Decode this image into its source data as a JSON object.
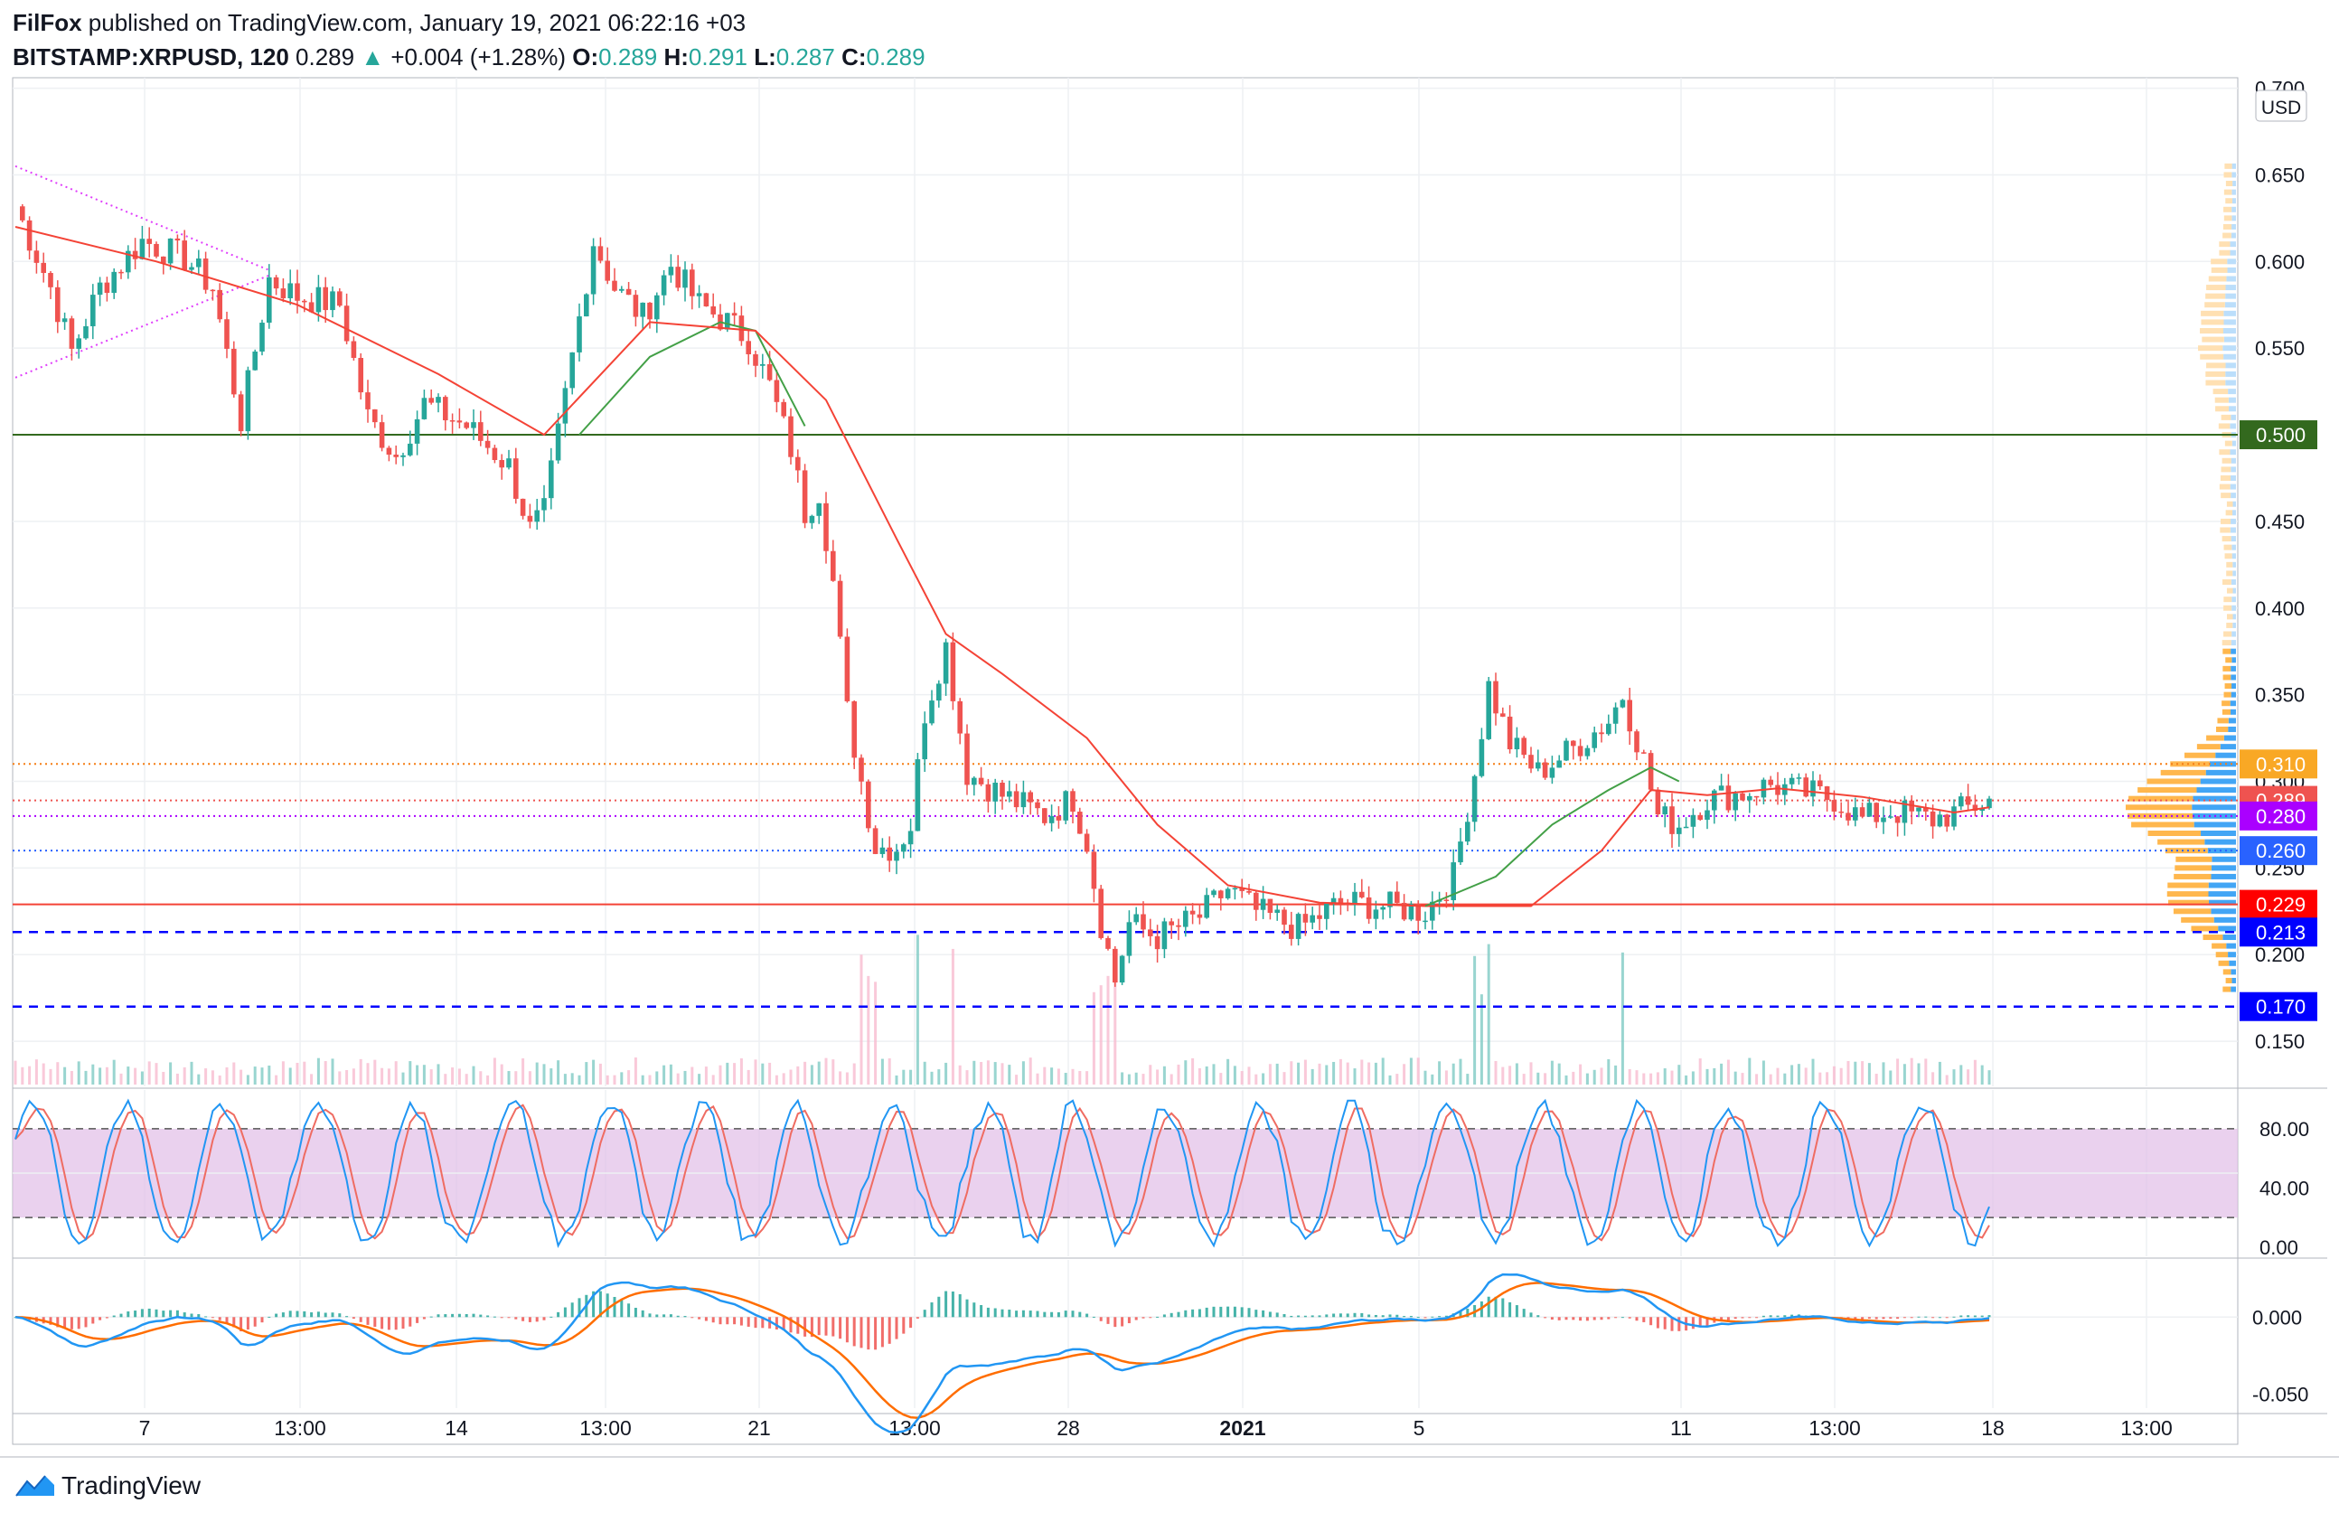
{
  "header": {
    "author": "FilFox",
    "published_text": "published on TradingView.com, January 19, 2021 06:22:16 +03",
    "symbol": "BITSTAMP:XRPUSD, 120",
    "last": "0.289",
    "change_arrow": "▲",
    "change": "+0.004 (+1.28%)",
    "o_label": "O:",
    "o_value": "0.289",
    "h_label": "H:",
    "h_value": "0.291",
    "l_label": "L:",
    "l_value": "0.287",
    "c_label": "C:",
    "c_value": "0.289"
  },
  "footer": {
    "brand": "TradingView"
  },
  "colors": {
    "up": "#26a69a",
    "down": "#ef5350",
    "ma_fast": "#43a047",
    "ma_slow": "#f44336",
    "level_green": "#33691e",
    "level_red": "#f44336",
    "level_blue": "#0000ff",
    "stoch_k": "#2196f3",
    "stoch_d": "#ef6c62",
    "stoch_band": "#e1bee7",
    "macd": "#2196f3",
    "signal": "#ff6d00",
    "vp_up": "#42a5f5",
    "vp_down": "#ffb74d"
  },
  "chart_data": [
    {
      "type": "candlestick",
      "currency_label": "USD",
      "ylim": [
        0.125,
        0.705
      ],
      "y_ticks": [
        "0.150",
        "0.200",
        "0.250",
        "0.300",
        "0.350",
        "0.400",
        "0.450",
        "0.500",
        "0.550",
        "0.600",
        "0.650",
        "0.700"
      ],
      "x_ticks": [
        "7",
        "13:00",
        "14",
        "13:00",
        "21",
        "13:00",
        "28",
        "2021",
        "5",
        "11",
        "13:00",
        "18",
        "13:00"
      ],
      "price_path_anchors": [
        [
          0,
          0.632
        ],
        [
          5,
          0.585
        ],
        [
          8,
          0.548
        ],
        [
          12,
          0.585
        ],
        [
          18,
          0.612
        ],
        [
          24,
          0.602
        ],
        [
          28,
          0.585
        ],
        [
          32,
          0.508
        ],
        [
          36,
          0.59
        ],
        [
          40,
          0.58
        ],
        [
          46,
          0.575
        ],
        [
          50,
          0.51
        ],
        [
          54,
          0.488
        ],
        [
          58,
          0.518
        ],
        [
          64,
          0.505
        ],
        [
          70,
          0.482
        ],
        [
          73,
          0.445
        ],
        [
          75,
          0.455
        ],
        [
          79,
          0.545
        ],
        [
          82,
          0.612
        ],
        [
          85,
          0.585
        ],
        [
          89,
          0.568
        ],
        [
          93,
          0.598
        ],
        [
          97,
          0.575
        ],
        [
          101,
          0.565
        ],
        [
          104,
          0.555
        ],
        [
          107,
          0.528
        ],
        [
          110,
          0.492
        ],
        [
          112,
          0.455
        ],
        [
          114,
          0.468
        ],
        [
          116,
          0.415
        ],
        [
          118,
          0.34
        ],
        [
          120,
          0.3
        ],
        [
          122,
          0.262
        ],
        [
          125,
          0.262
        ],
        [
          127,
          0.275
        ],
        [
          129,
          0.34
        ],
        [
          132,
          0.378
        ],
        [
          135,
          0.305
        ],
        [
          140,
          0.292
        ],
        [
          146,
          0.28
        ],
        [
          150,
          0.29
        ],
        [
          152,
          0.265
        ],
        [
          154,
          0.218
        ],
        [
          156,
          0.185
        ],
        [
          158,
          0.218
        ],
        [
          162,
          0.21
        ],
        [
          168,
          0.222
        ],
        [
          172,
          0.238
        ],
        [
          176,
          0.225
        ],
        [
          182,
          0.215
        ],
        [
          188,
          0.23
        ],
        [
          194,
          0.228
        ],
        [
          200,
          0.225
        ],
        [
          204,
          0.245
        ],
        [
          207,
          0.305
        ],
        [
          209,
          0.355
        ],
        [
          212,
          0.322
        ],
        [
          216,
          0.305
        ],
        [
          222,
          0.322
        ],
        [
          226,
          0.335
        ],
        [
          228,
          0.35
        ],
        [
          231,
          0.312
        ],
        [
          233,
          0.28
        ],
        [
          236,
          0.275
        ],
        [
          240,
          0.29
        ],
        [
          245,
          0.293
        ],
        [
          249,
          0.298
        ],
        [
          252,
          0.295
        ],
        [
          258,
          0.29
        ],
        [
          262,
          0.278
        ],
        [
          266,
          0.283
        ],
        [
          272,
          0.278
        ],
        [
          276,
          0.283
        ],
        [
          280,
          0.289
        ]
      ],
      "series": [
        {
          "name": "MA fast",
          "values": [
            [
              80,
              0.5
            ],
            [
              90,
              0.545
            ],
            [
              100,
              0.565
            ],
            [
              105,
              0.56
            ],
            [
              112,
              0.505
            ]
          ]
        },
        {
          "name": "MA slow",
          "values": [
            [
              0,
              0.62
            ],
            [
              20,
              0.6
            ],
            [
              40,
              0.575
            ],
            [
              60,
              0.535
            ],
            [
              75,
              0.5
            ],
            [
              90,
              0.565
            ],
            [
              105,
              0.56
            ],
            [
              115,
              0.52
            ],
            [
              125,
              0.44
            ],
            [
              132,
              0.385
            ],
            [
              140,
              0.362
            ],
            [
              152,
              0.325
            ],
            [
              162,
              0.275
            ],
            [
              172,
              0.24
            ],
            [
              185,
              0.23
            ],
            [
              200,
              0.228
            ],
            [
              215,
              0.228
            ],
            [
              225,
              0.26
            ],
            [
              232,
              0.295
            ],
            [
              240,
              0.292
            ],
            [
              250,
              0.296
            ],
            [
              262,
              0.291
            ],
            [
              275,
              0.282
            ],
            [
              280,
              0.285
            ]
          ]
        },
        {
          "name": "MA fast",
          "values": [
            [
              200,
              0.228
            ],
            [
              210,
              0.245
            ],
            [
              218,
              0.275
            ],
            [
              226,
              0.295
            ],
            [
              232,
              0.308
            ],
            [
              236,
              0.3
            ]
          ]
        }
      ],
      "trendlines": [
        {
          "from": [
            0,
            0.655
          ],
          "to": [
            36,
            0.595
          ]
        },
        {
          "from": [
            0,
            0.533
          ],
          "to": [
            36,
            0.592
          ]
        }
      ],
      "levels": [
        {
          "value": 0.5,
          "label": "0.500",
          "style": "solid",
          "color": "#33691e"
        },
        {
          "value": 0.31,
          "label": "0.310",
          "style": "dotted",
          "color": "#f57f17"
        },
        {
          "value": 0.289,
          "label": "0.289",
          "style": "dotted",
          "color": "#ef5350"
        },
        {
          "value": 0.28,
          "label": "0.280",
          "style": "dotted",
          "color": "#aa00ff"
        },
        {
          "value": 0.26,
          "label": "0.260",
          "style": "dotted",
          "color": "#2962ff"
        },
        {
          "value": 0.229,
          "label": "0.229",
          "style": "solid",
          "color": "#f44336"
        },
        {
          "value": 0.213,
          "label": "0.213",
          "style": "dashed",
          "color": "#0000ff"
        },
        {
          "value": 0.17,
          "label": "0.170",
          "style": "dashed",
          "color": "#0000ff"
        }
      ],
      "price_tags": [
        {
          "label": "0.500",
          "value": 0.5,
          "bg": "#33691e"
        },
        {
          "label": "0.310",
          "value": 0.31,
          "bg": "#f9a825"
        },
        {
          "label": "0.289",
          "value": 0.289,
          "bg": "#ef5350"
        },
        {
          "label": "0.280",
          "value": 0.28,
          "bg": "#aa00ff"
        },
        {
          "label": "0.260",
          "value": 0.26,
          "bg": "#2962ff"
        },
        {
          "label": "0.229",
          "value": 0.229,
          "bg": "#ff0000"
        },
        {
          "label": "0.213",
          "value": 0.213,
          "bg": "#0000ff"
        },
        {
          "label": "0.170",
          "value": 0.17,
          "bg": "#0000ff"
        }
      ]
    },
    {
      "type": "line",
      "name": "Stochastic RSI",
      "ylim": [
        -5,
        105
      ],
      "y_ticks": [
        "0.00",
        "40.00",
        "80.00"
      ],
      "band": [
        20,
        80
      ]
    },
    {
      "type": "line",
      "name": "MACD",
      "ylim": [
        -0.058,
        0.036
      ],
      "y_ticks": [
        "-0.050",
        "0.000"
      ]
    }
  ]
}
